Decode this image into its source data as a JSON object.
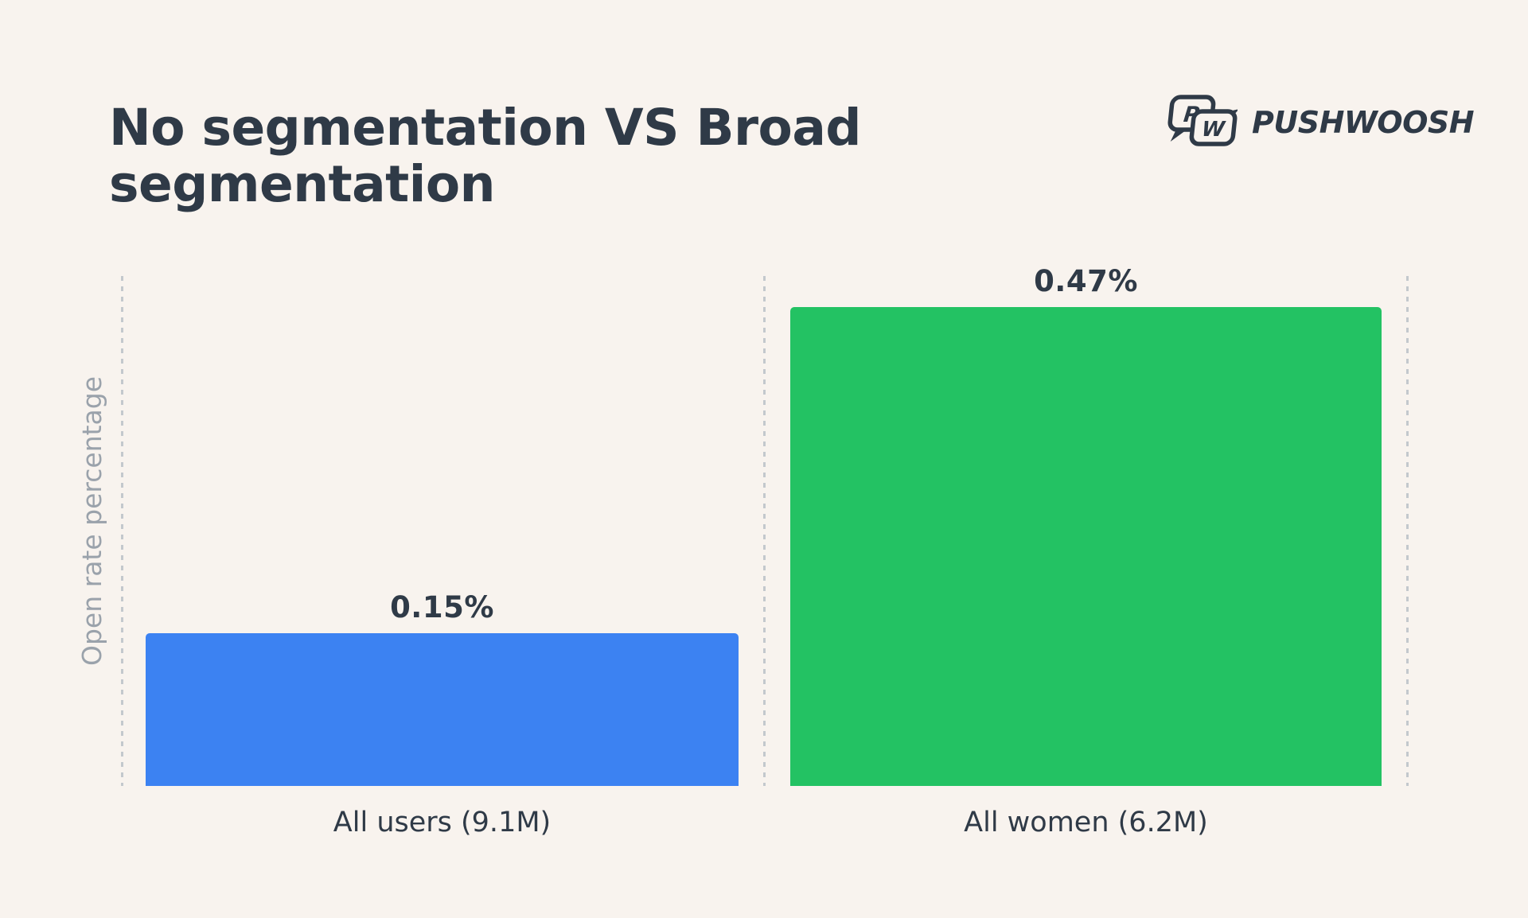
{
  "page": {
    "background": "#F8F3EE",
    "text_color": "#2F3A47"
  },
  "header": {
    "title": "No segmentation VS Broad segmentation",
    "brand": {
      "name": "PUSHWOOSH",
      "icon": "pushwoosh-speech-bubbles-icon",
      "icon_letters": [
        "P",
        "W"
      ],
      "color": "#2F3A47"
    }
  },
  "chart_data": {
    "type": "bar",
    "title": "No segmentation VS Broad segmentation",
    "xlabel": "",
    "ylabel": "Open rate percentage",
    "categories": [
      "All users (9.1M)",
      "All women (6.2M)"
    ],
    "values": [
      0.15,
      0.47
    ],
    "value_labels": [
      "0.15%",
      "0.47%"
    ],
    "unit": "percent open rate",
    "bar_colors": [
      "#3C82F2",
      "#23C263"
    ],
    "ylim": [
      0,
      0.47
    ],
    "grid": "vertical-dashed-guides-only",
    "guide_color": "#C3C8CD",
    "axis_label_color": "#9AA2AB",
    "legend": "none"
  }
}
